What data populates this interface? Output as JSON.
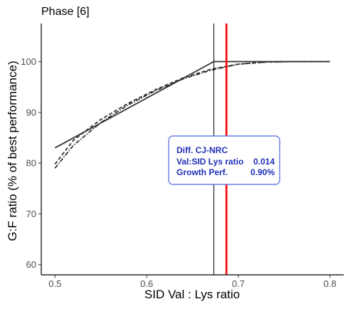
{
  "chart_data": {
    "type": "line",
    "title": "Phase [6]",
    "xlabel": "SID Val : Lys ratio",
    "ylabel": "G:F ratio (% of best performance)",
    "xlim": [
      0.485,
      0.815
    ],
    "ylim": [
      58,
      107.5
    ],
    "xticks": [
      0.5,
      0.6,
      0.7,
      0.8
    ],
    "xtick_labels": [
      "0.5",
      "0.6",
      "0.7",
      "0.8"
    ],
    "yticks": [
      60,
      70,
      80,
      90,
      100
    ],
    "ytick_labels": [
      "60",
      "70",
      "80",
      "90",
      "100"
    ],
    "grid": false,
    "series": [
      {
        "style": "solid",
        "x": [
          0.5,
          0.6733,
          0.8
        ],
        "y": [
          83,
          100,
          100
        ]
      },
      {
        "style": "dashed",
        "x": [
          0.5,
          0.52,
          0.55,
          0.58,
          0.61,
          0.64,
          0.67,
          0.7,
          0.73,
          0.76,
          0.8
        ],
        "y": [
          79.8,
          84.5,
          88.6,
          91.8,
          94.5,
          96.8,
          98.5,
          99.5,
          99.9,
          100,
          100
        ]
      },
      {
        "style": "dotdash",
        "x": [
          0.5,
          0.52,
          0.55,
          0.58,
          0.61,
          0.64,
          0.67,
          0.7,
          0.73,
          0.76,
          0.8
        ],
        "y": [
          79,
          83.5,
          88,
          91.5,
          94.3,
          96.6,
          98.3,
          99.5,
          99.9,
          100,
          100
        ]
      }
    ],
    "vlines": [
      {
        "x": 0.6733,
        "color": "#000000",
        "width": "thin"
      },
      {
        "x": 0.687,
        "color": "#ff0000",
        "width": "thick"
      }
    ],
    "annotation": {
      "title": "Diff. CJ-NRC",
      "rows": [
        {
          "label": "Val:SID Lys ratio",
          "value": "0.014"
        },
        {
          "label": "Growth Perf.",
          "value": "0.90%"
        }
      ],
      "text_color": "#1f2fb8",
      "border_color": "#4a64e0"
    }
  }
}
